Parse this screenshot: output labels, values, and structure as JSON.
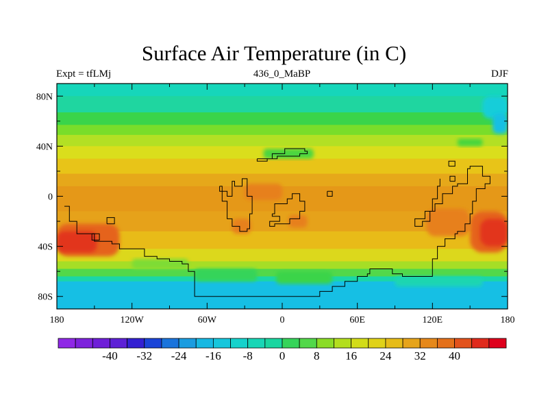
{
  "header": {
    "title": "Surface Air Temperature (in C)",
    "left_label": "Expt = tfLMj",
    "center_label": "436_0_MaBP",
    "right_label": "DJF"
  },
  "map": {
    "lat_ticks": [
      {
        "lat": 80,
        "label": "80N"
      },
      {
        "lat": 40,
        "label": "40N"
      },
      {
        "lat": 0,
        "label": "0"
      },
      {
        "lat": -40,
        "label": "40S"
      },
      {
        "lat": -80,
        "label": "80S"
      }
    ],
    "lon_ticks": [
      {
        "lon": -180,
        "label": "180"
      },
      {
        "lon": -120,
        "label": "120W"
      },
      {
        "lon": -60,
        "label": "60W"
      },
      {
        "lon": 0,
        "label": "0"
      },
      {
        "lon": 60,
        "label": "60E"
      },
      {
        "lon": 120,
        "label": "120E"
      },
      {
        "lon": 180,
        "label": "180"
      }
    ],
    "lat_range": [
      -90,
      90
    ],
    "lon_range": [
      -180,
      180
    ],
    "bands": [
      {
        "lat": [
          80,
          90
        ],
        "color": "#16d6ba"
      },
      {
        "lat": [
          67,
          80
        ],
        "color": "#1fd6a0"
      },
      {
        "lat": [
          57,
          67
        ],
        "color": "#3ad44a"
      },
      {
        "lat": [
          49,
          57
        ],
        "color": "#79dd2a"
      },
      {
        "lat": [
          40,
          49
        ],
        "color": "#b3e024"
      },
      {
        "lat": [
          30,
          40
        ],
        "color": "#dade1c"
      },
      {
        "lat": [
          18,
          30
        ],
        "color": "#e8c418"
      },
      {
        "lat": [
          8,
          18
        ],
        "color": "#e6a81a"
      },
      {
        "lat": [
          -12,
          8
        ],
        "color": "#e59818"
      },
      {
        "lat": [
          -28,
          -12
        ],
        "color": "#e6a21a"
      },
      {
        "lat": [
          -42,
          -28
        ],
        "color": "#e8bb18"
      },
      {
        "lat": [
          -52,
          -42
        ],
        "color": "#dcd81c"
      },
      {
        "lat": [
          -58,
          -52
        ],
        "color": "#a6de26"
      },
      {
        "lat": [
          -64,
          -58
        ],
        "color": "#52d84a"
      },
      {
        "lat": [
          -68,
          -64
        ],
        "color": "#1ad6a8"
      },
      {
        "lat": [
          -90,
          -68
        ],
        "color": "#16bfe4"
      }
    ],
    "patches": [
      {
        "lon": [
          -180,
          -130
        ],
        "lat": [
          -48,
          -22
        ],
        "color": "#e5641c"
      },
      {
        "lon": [
          -180,
          -148
        ],
        "lat": [
          -45,
          -28
        ],
        "color": "#e2361c"
      },
      {
        "lon": [
          150,
          180
        ],
        "lat": [
          -45,
          -12
        ],
        "color": "#e5641c"
      },
      {
        "lon": [
          158,
          180
        ],
        "lat": [
          -40,
          -18
        ],
        "color": "#e2361c"
      },
      {
        "lon": [
          115,
          150
        ],
        "lat": [
          -32,
          -10
        ],
        "color": "#e7801a"
      },
      {
        "lon": [
          -40,
          -25
        ],
        "lat": [
          -30,
          -18
        ],
        "color": "#e7801a"
      },
      {
        "lon": [
          5,
          20
        ],
        "lat": [
          -25,
          -15
        ],
        "color": "#e7801a"
      },
      {
        "lon": [
          -30,
          0
        ],
        "lat": [
          -3,
          10
        ],
        "color": "#e7801a"
      },
      {
        "lon": [
          -120,
          -75
        ],
        "lat": [
          -58,
          -50
        ],
        "color": "#7edc36"
      },
      {
        "lon": [
          -70,
          -20
        ],
        "lat": [
          -68,
          -58
        ],
        "color": "#36d45a"
      },
      {
        "lon": [
          -5,
          40
        ],
        "lat": [
          -70,
          -60
        ],
        "color": "#3ad44a"
      },
      {
        "lon": [
          90,
          160
        ],
        "lat": [
          -72,
          -64
        ],
        "color": "#1ad6b0"
      },
      {
        "lon": [
          160,
          180
        ],
        "lat": [
          62,
          80
        ],
        "color": "#14cdd9"
      },
      {
        "lon": [
          168,
          180
        ],
        "lat": [
          50,
          66
        ],
        "color": "#16bfe4"
      },
      {
        "lon": [
          -15,
          25
        ],
        "lat": [
          30,
          38
        ],
        "color": "#4cd640"
      },
      {
        "lon": [
          140,
          160
        ],
        "lat": [
          40,
          46
        ],
        "color": "#46d63e"
      }
    ],
    "coastlines": [
      [
        [
          -174,
          -8
        ],
        [
          -170,
          -20
        ],
        [
          -164,
          -30
        ],
        [
          -150,
          -36
        ],
        [
          -136,
          -38
        ],
        [
          -130,
          -42
        ],
        [
          -110,
          -48
        ],
        [
          -100,
          -50
        ],
        [
          -90,
          -52
        ],
        [
          -80,
          -54
        ],
        [
          -75,
          -60
        ],
        [
          -70,
          -66
        ],
        [
          -70,
          -80
        ],
        [
          -20,
          -80
        ],
        [
          0,
          -80
        ],
        [
          30,
          -76
        ],
        [
          40,
          -72
        ],
        [
          50,
          -68
        ],
        [
          60,
          -64
        ],
        [
          68,
          -62
        ],
        [
          70,
          -58
        ],
        [
          80,
          -58
        ],
        [
          88,
          -62
        ],
        [
          96,
          -64
        ],
        [
          110,
          -64
        ],
        [
          120,
          -50
        ],
        [
          124,
          -40
        ],
        [
          130,
          -34
        ],
        [
          138,
          -30
        ],
        [
          140,
          -28
        ],
        [
          146,
          -22
        ],
        [
          150,
          -14
        ],
        [
          152,
          -4
        ],
        [
          155,
          6
        ],
        [
          162,
          10
        ],
        [
          166,
          16
        ],
        [
          160,
          24
        ],
        [
          150,
          22
        ],
        [
          148,
          10
        ],
        [
          140,
          8
        ],
        [
          136,
          2
        ],
        [
          128,
          -6
        ],
        [
          122,
          -12
        ],
        [
          118,
          -20
        ],
        [
          112,
          -24
        ],
        [
          106,
          -18
        ],
        [
          114,
          -12
        ],
        [
          120,
          -2
        ],
        [
          124,
          8
        ],
        [
          126,
          14
        ]
      ],
      [
        [
          -20,
          30
        ],
        [
          -8,
          34
        ],
        [
          2,
          38
        ],
        [
          12,
          38
        ],
        [
          18,
          36
        ],
        [
          20,
          34
        ],
        [
          14,
          32
        ],
        [
          4,
          32
        ],
        [
          -4,
          30
        ],
        [
          -12,
          28
        ],
        [
          -20,
          30
        ]
      ],
      [
        [
          -50,
          8
        ],
        [
          -48,
          -4
        ],
        [
          -44,
          -18
        ],
        [
          -40,
          -24
        ],
        [
          -34,
          -28
        ],
        [
          -28,
          -26
        ],
        [
          -26,
          -14
        ],
        [
          -24,
          0
        ],
        [
          -28,
          10
        ],
        [
          -28,
          14
        ],
        [
          -32,
          8
        ],
        [
          -38,
          12
        ],
        [
          -40,
          0
        ],
        [
          -44,
          4
        ],
        [
          -50,
          8
        ]
      ],
      [
        [
          -8,
          -14
        ],
        [
          -6,
          -6
        ],
        [
          4,
          -2
        ],
        [
          8,
          2
        ],
        [
          14,
          -4
        ],
        [
          18,
          -12
        ],
        [
          14,
          -18
        ],
        [
          6,
          -22
        ],
        [
          -6,
          -24
        ],
        [
          -10,
          -20
        ],
        [
          -2,
          -16
        ],
        [
          -8,
          -14
        ]
      ],
      [
        [
          -140,
          -22
        ],
        [
          -134,
          -22
        ],
        [
          -134,
          -17
        ],
        [
          -140,
          -17
        ],
        [
          -140,
          -22
        ]
      ],
      [
        [
          -152,
          -30
        ],
        [
          -146,
          -30
        ],
        [
          -146,
          -35
        ],
        [
          -152,
          -35
        ],
        [
          -152,
          -30
        ]
      ],
      [
        [
          36,
          4
        ],
        [
          40,
          4
        ],
        [
          40,
          0
        ],
        [
          36,
          0
        ],
        [
          36,
          4
        ]
      ],
      [
        [
          134,
          12
        ],
        [
          138,
          12
        ],
        [
          138,
          16
        ],
        [
          134,
          16
        ],
        [
          134,
          12
        ]
      ],
      [
        [
          133,
          24
        ],
        [
          138,
          24
        ],
        [
          138,
          28
        ],
        [
          133,
          28
        ],
        [
          133,
          24
        ]
      ]
    ]
  },
  "colorbar": {
    "labels": [
      "-40",
      "-32",
      "-24",
      "-16",
      "-8",
      "0",
      "8",
      "16",
      "24",
      "32",
      "40"
    ],
    "colors": [
      "#8f28e6",
      "#7d22dc",
      "#6e1ed8",
      "#5d20d6",
      "#3320d2",
      "#1a44d8",
      "#1a74dc",
      "#1a9ce0",
      "#16b8e2",
      "#16c6dc",
      "#16d2cc",
      "#18d6b6",
      "#1ad6a0",
      "#36d45a",
      "#52d84a",
      "#8adc26",
      "#b3de1e",
      "#d2dc18",
      "#e0d218",
      "#e6bc18",
      "#e6a41a",
      "#e6881a",
      "#e4701a",
      "#e2521c",
      "#e02a1c",
      "#de001c"
    ]
  }
}
